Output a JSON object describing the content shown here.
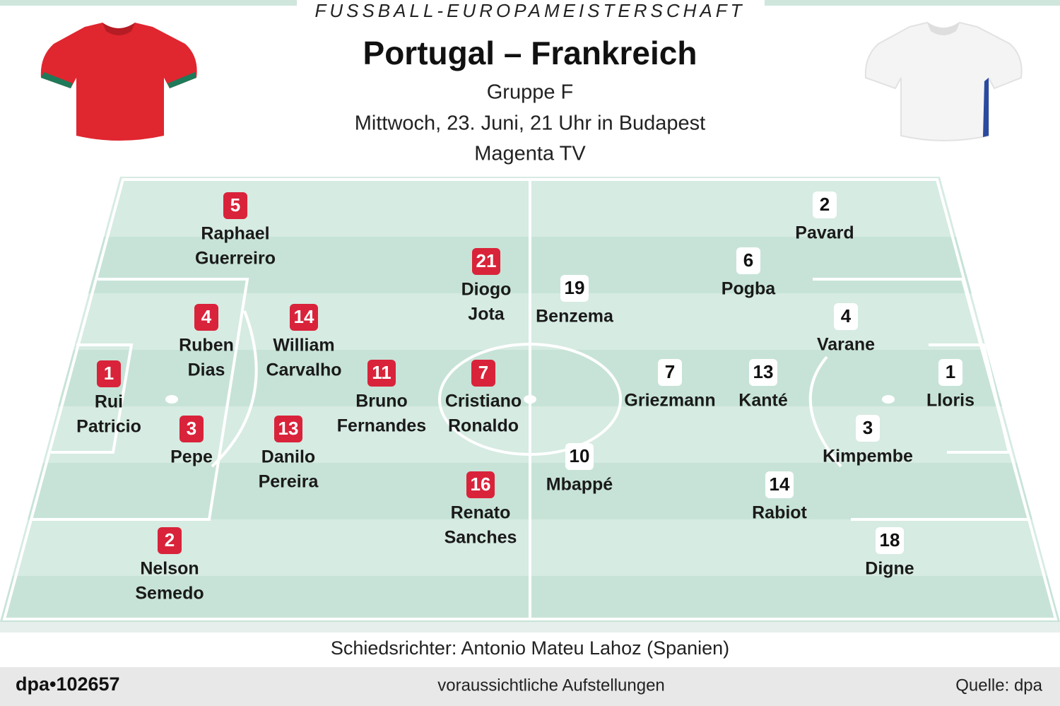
{
  "header": {
    "kicker": "FUSSBALL-EUROPAMEISTERSCHAFT",
    "title": "Portugal – Frankreich",
    "group": "Gruppe F",
    "date": "Mittwoch, 23. Juni, 21 Uhr in Budapest",
    "broadcaster": "Magenta TV"
  },
  "teams": [
    {
      "players": [
        {
          "number": "5",
          "name": [
            "Raphael",
            "Guerreiro"
          ]
        },
        {
          "number": "21",
          "name": [
            "Diogo",
            "Jota"
          ]
        },
        {
          "number": "4",
          "name": [
            "Ruben",
            "Dias"
          ]
        },
        {
          "number": "14",
          "name": [
            "William",
            "Carvalho"
          ]
        },
        {
          "number": "1",
          "name": [
            "Rui",
            "Patricio"
          ]
        },
        {
          "number": "11",
          "name": [
            "Bruno",
            "Fernandes"
          ]
        },
        {
          "number": "7",
          "name": [
            "Cristiano",
            "Ronaldo"
          ]
        },
        {
          "number": "3",
          "name": [
            "Pepe"
          ]
        },
        {
          "number": "13",
          "name": [
            "Danilo",
            "Pereira"
          ]
        },
        {
          "number": "16",
          "name": [
            "Renato",
            "Sanches"
          ]
        },
        {
          "number": "2",
          "name": [
            "Nelson",
            "Semedo"
          ]
        }
      ]
    },
    {
      "players": [
        {
          "number": "2",
          "name": [
            "Pavard"
          ]
        },
        {
          "number": "6",
          "name": [
            "Pogba"
          ]
        },
        {
          "number": "19",
          "name": [
            "Benzema"
          ]
        },
        {
          "number": "4",
          "name": [
            "Varane"
          ]
        },
        {
          "number": "7",
          "name": [
            "Griezmann"
          ]
        },
        {
          "number": "13",
          "name": [
            "Kanté"
          ]
        },
        {
          "number": "1",
          "name": [
            "Lloris"
          ]
        },
        {
          "number": "3",
          "name": [
            "Kimpembe"
          ]
        },
        {
          "number": "10",
          "name": [
            "Mbappé"
          ]
        },
        {
          "number": "14",
          "name": [
            "Rabiot"
          ]
        },
        {
          "number": "18",
          "name": [
            "Digne"
          ]
        }
      ]
    }
  ],
  "referee": "Schiedsrichter: Antonio Mateu Lahoz (Spanien)",
  "footer": {
    "id": "dpa•102657",
    "caption": "voraussichtliche Aufstellungen",
    "source": "Quelle: dpa"
  }
}
